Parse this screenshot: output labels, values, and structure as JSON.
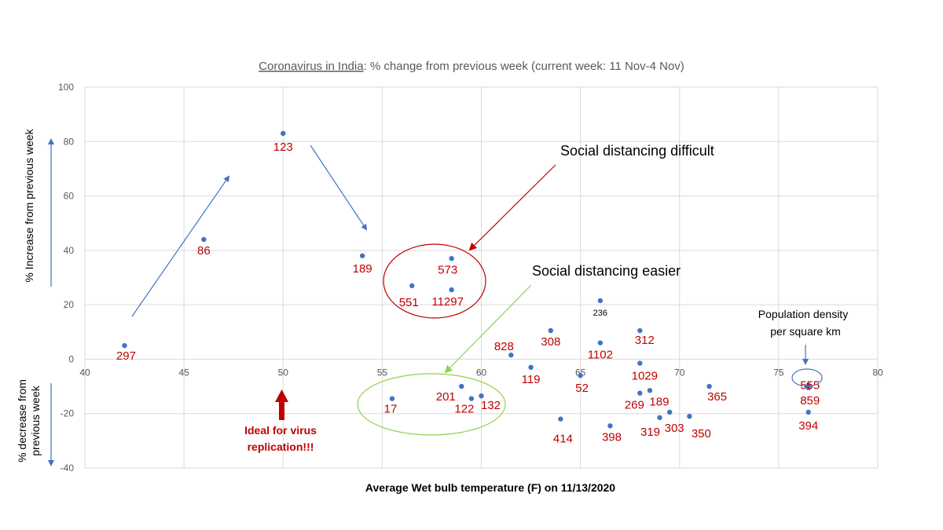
{
  "chart_data": {
    "type": "scatter",
    "title_prefix": "Coronavirus in India",
    "title_rest": ": % change from previous week (current week: 11 Nov-4 Nov)",
    "xlabel": "Average Wet bulb temperature (F) on 11/13/2020",
    "ylabel_top": "% Increase from previous week",
    "ylabel_bottom_1": "% decrease from",
    "ylabel_bottom_2": "previous week",
    "xlim": [
      40,
      80
    ],
    "ylim": [
      -40,
      100
    ],
    "x_ticks": [
      40,
      45,
      50,
      55,
      60,
      65,
      70,
      75,
      80
    ],
    "y_ticks": [
      -40,
      -20,
      0,
      20,
      40,
      60,
      80,
      100
    ],
    "grid": true,
    "marker_color": "#4472c4",
    "label_color": "#c00000",
    "points": [
      {
        "x": 42,
        "y": 5,
        "label": "297"
      },
      {
        "x": 46,
        "y": 44,
        "label": "86"
      },
      {
        "x": 50,
        "y": 83,
        "label": "123"
      },
      {
        "x": 54,
        "y": 38,
        "label": "189"
      },
      {
        "x": 56.5,
        "y": 27,
        "label": "551"
      },
      {
        "x": 58.5,
        "y": 37,
        "label": "573"
      },
      {
        "x": 58.5,
        "y": 25.5,
        "label": "11297"
      },
      {
        "x": 66,
        "y": 21.5,
        "label": "236"
      },
      {
        "x": 63.5,
        "y": 10.5,
        "label": "308"
      },
      {
        "x": 61.5,
        "y": 1.5,
        "label": "828"
      },
      {
        "x": 66,
        "y": 6,
        "label": "1102"
      },
      {
        "x": 68,
        "y": 10.5,
        "label": "312"
      },
      {
        "x": 68,
        "y": -1.5,
        "label": "1029"
      },
      {
        "x": 62.5,
        "y": -3,
        "label": "119"
      },
      {
        "x": 65,
        "y": -6,
        "label": "52"
      },
      {
        "x": 55.5,
        "y": -14.5,
        "label": "17"
      },
      {
        "x": 59,
        "y": -10,
        "label": "201"
      },
      {
        "x": 59.5,
        "y": -14.5,
        "label": "122"
      },
      {
        "x": 60,
        "y": -13.5,
        "label": "132"
      },
      {
        "x": 64,
        "y": -22,
        "label": "414"
      },
      {
        "x": 66.5,
        "y": -24.5,
        "label": "398"
      },
      {
        "x": 68,
        "y": -12.5,
        "label": "269"
      },
      {
        "x": 68.5,
        "y": -11.5,
        "label": "189"
      },
      {
        "x": 69,
        "y": -21.5,
        "label": "319"
      },
      {
        "x": 69.5,
        "y": -19.5,
        "label": "303"
      },
      {
        "x": 70.5,
        "y": -21,
        "label": "350"
      },
      {
        "x": 71.5,
        "y": -10,
        "label": "365"
      },
      {
        "x": 76.5,
        "y": -9.5,
        "label": "555"
      },
      {
        "x": 76.5,
        "y": -10.5,
        "label": "859"
      },
      {
        "x": 76.5,
        "y": -19.5,
        "label": "394"
      }
    ],
    "annotations": {
      "difficult": "Social distancing difficult",
      "easier": "Social distancing easier",
      "density_1": "Population density",
      "density_2": "per square km",
      "ideal_1": "Ideal for virus",
      "ideal_2": "replication!!!"
    },
    "colors": {
      "arrow_blue": "#4472c4",
      "circle_red": "#c00000",
      "circle_green": "#92d050",
      "arrow_dark_red": "#c00000"
    }
  }
}
